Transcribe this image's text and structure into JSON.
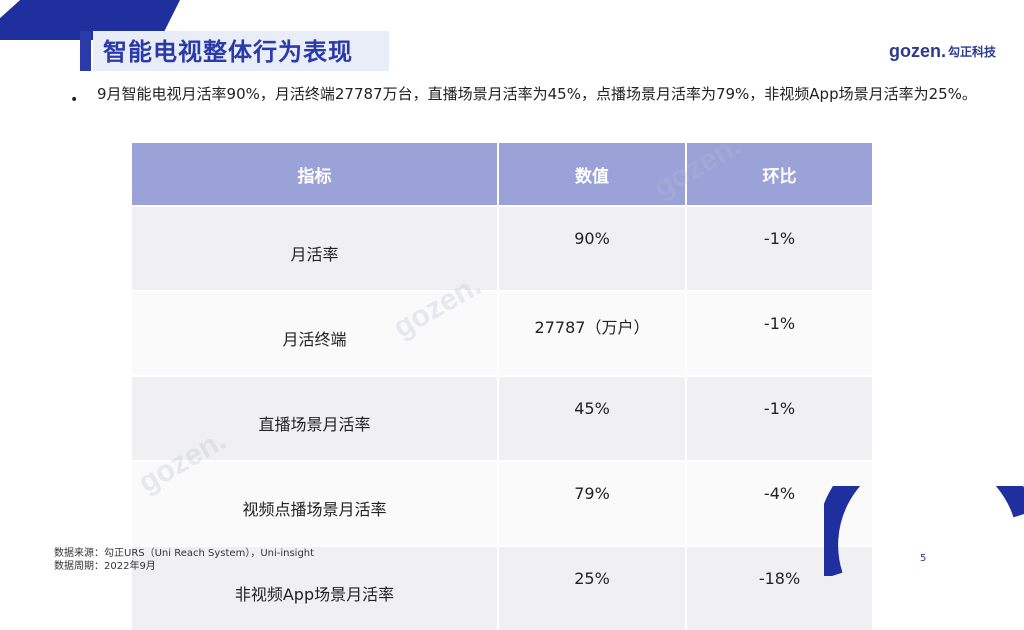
{
  "header": {
    "title": "智能电视整体行为表现",
    "logo_mark": "gozen.",
    "logo_cn": "勾正科技"
  },
  "summary": {
    "bullet": "•",
    "text": "9月智能电视月活率90%，月活终端27787万台，直播场景月活率为45%，点播场景月活率为79%，非视频App场景月活率为25%。"
  },
  "table": {
    "headers": [
      "指标",
      "数值",
      "环比"
    ],
    "rows": [
      {
        "metric": "月活率",
        "value": "90%",
        "mom": "-1%"
      },
      {
        "metric": "月活终端",
        "value": "27787（万户）",
        "mom": "-1%"
      },
      {
        "metric": "直播场景月活率",
        "value": "45%",
        "mom": "-1%"
      },
      {
        "metric": "视频点播场景月活率",
        "value": "79%",
        "mom": "-4%"
      },
      {
        "metric": "非视频App场景月活率",
        "value": "25%",
        "mom": "-18%"
      }
    ]
  },
  "footer": {
    "source": "数据来源：勾正URS（Uni Reach System），Uni-insight",
    "period": "数据周期：2022年9月",
    "page_number": "5"
  },
  "colors": {
    "brand_blue": "#2a3aa8",
    "table_header": "#9aa2d8"
  }
}
